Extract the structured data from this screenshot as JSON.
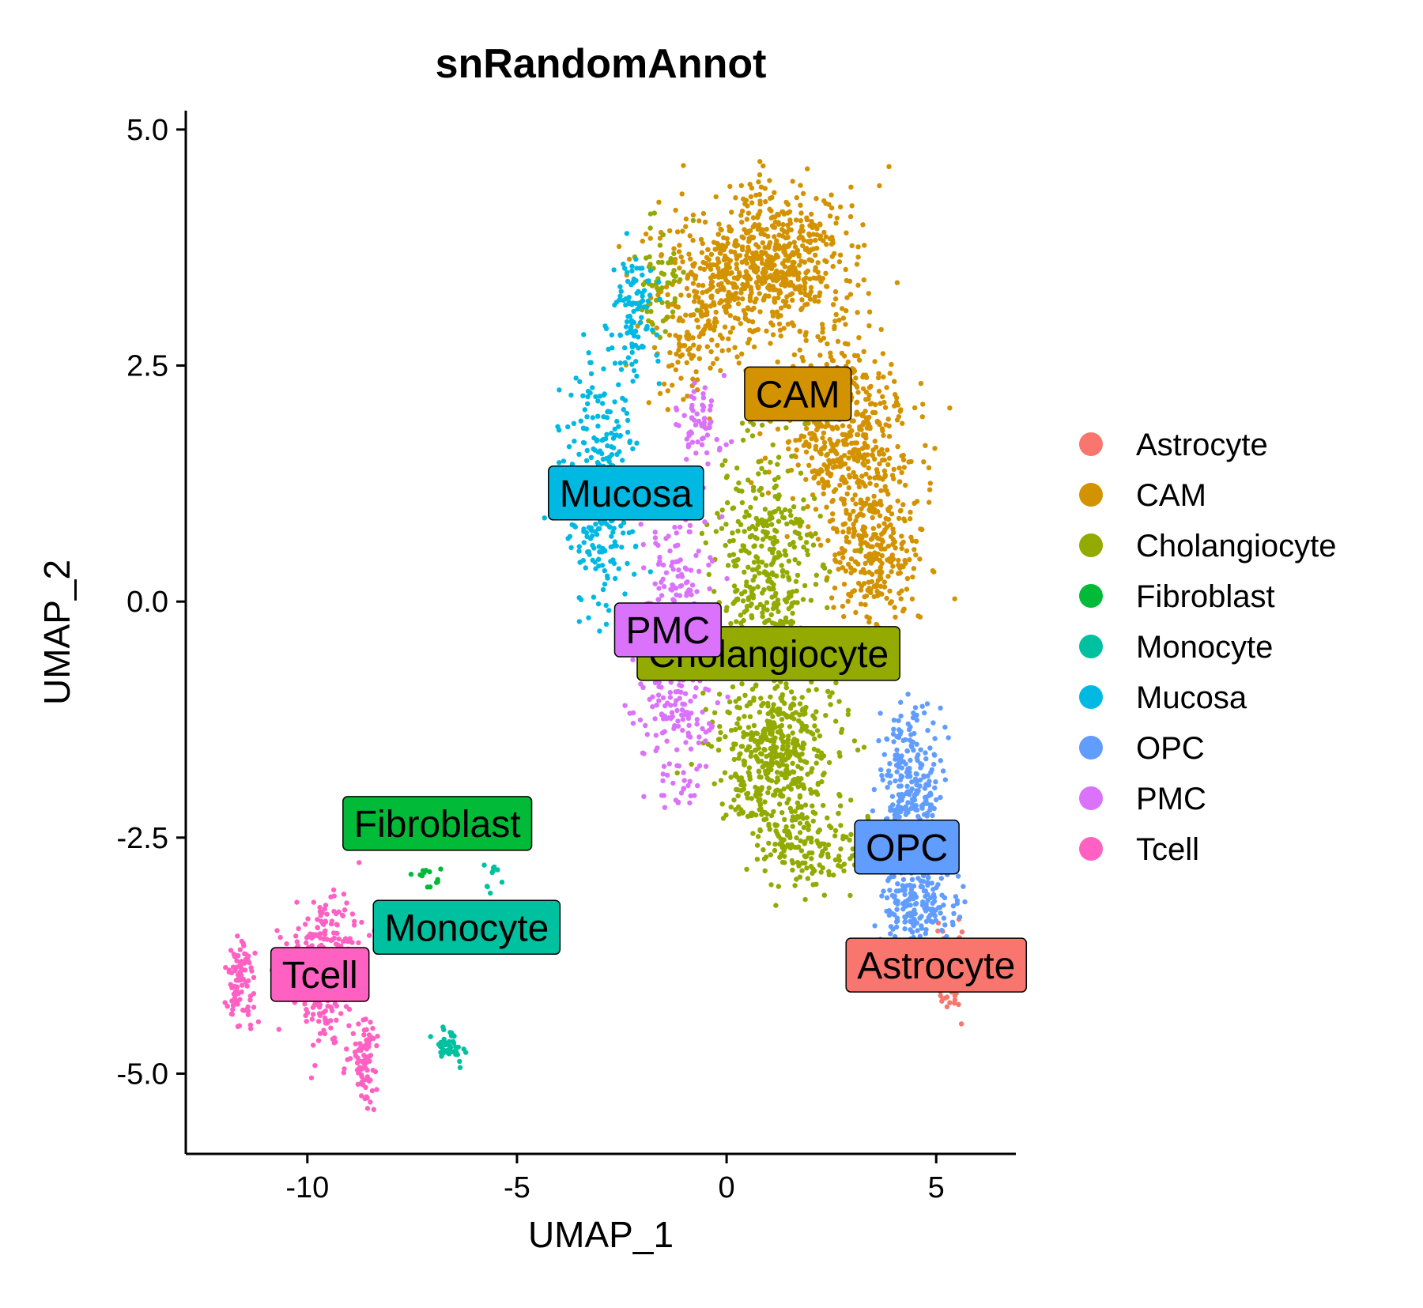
{
  "chart_data": {
    "type": "scatter",
    "title": "snRandomAnnot",
    "xlabel": "UMAP_1",
    "ylabel": "UMAP_2",
    "xlim": [
      -12.9,
      6.9
    ],
    "ylim": [
      -5.85,
      5.2
    ],
    "xticks": [
      -10,
      -5,
      0,
      5
    ],
    "xtick_labels": [
      "-10",
      "-5",
      "0",
      "5"
    ],
    "yticks": [
      5.0,
      2.5,
      0.0,
      -2.5,
      -5.0
    ],
    "ytick_labels": [
      "5.0",
      "2.5",
      "0.0",
      "-2.5",
      "-5.0"
    ],
    "grid": false,
    "legend_position": "right",
    "series": [
      {
        "name": "Astrocyte",
        "color": "#F8766D",
        "regions": [
          {
            "center": [
              5.3,
              -3.9
            ],
            "spread": [
              0.35,
              0.4
            ],
            "count": 90
          }
        ],
        "label": "Astrocyte",
        "label_pos": [
          5.0,
          -3.85
        ]
      },
      {
        "name": "CAM",
        "color": "#D39200",
        "regions": [
          {
            "center": [
              1.0,
              3.6
            ],
            "spread": [
              1.6,
              0.65
            ],
            "count": 650
          },
          {
            "center": [
              2.8,
              1.8
            ],
            "spread": [
              1.2,
              0.9
            ],
            "count": 500
          },
          {
            "center": [
              3.6,
              0.6
            ],
            "spread": [
              0.9,
              0.8
            ],
            "count": 300
          },
          {
            "center": [
              -0.8,
              3.0
            ],
            "spread": [
              1.0,
              0.7
            ],
            "count": 200
          }
        ],
        "label": "CAM",
        "label_pos": [
          1.7,
          2.2
        ]
      },
      {
        "name": "Cholangiocyte",
        "color": "#93AA00",
        "regions": [
          {
            "center": [
              0.9,
              0.3
            ],
            "spread": [
              1.0,
              1.1
            ],
            "count": 400
          },
          {
            "center": [
              1.2,
              -1.6
            ],
            "spread": [
              1.2,
              0.7
            ],
            "count": 500
          },
          {
            "center": [
              2.0,
              -2.6
            ],
            "spread": [
              1.1,
              0.35
            ],
            "count": 150
          },
          {
            "center": [
              -1.5,
              3.4
            ],
            "spread": [
              0.5,
              0.5
            ],
            "count": 60
          }
        ],
        "label": "Cholangiocyte",
        "label_pos": [
          1.0,
          -0.55
        ]
      },
      {
        "name": "Fibroblast",
        "color": "#00BA38",
        "regions": [
          {
            "center": [
              -7.2,
              -2.9
            ],
            "spread": [
              0.3,
              0.25
            ],
            "count": 14
          }
        ],
        "label": "Fibroblast",
        "label_pos": [
          -6.9,
          -2.35
        ]
      },
      {
        "name": "Monocyte",
        "color": "#00C19F",
        "regions": [
          {
            "center": [
              -6.6,
              -4.7
            ],
            "spread": [
              0.3,
              0.12
            ],
            "count": 45
          },
          {
            "center": [
              -5.6,
              -2.9
            ],
            "spread": [
              0.25,
              0.2
            ],
            "count": 10
          }
        ],
        "label": "Monocyte",
        "label_pos": [
          -6.2,
          -3.45
        ]
      },
      {
        "name": "Mucosa",
        "color": "#00B9E3",
        "regions": [
          {
            "center": [
              -3.0,
              1.2
            ],
            "spread": [
              0.7,
              1.1
            ],
            "count": 300
          },
          {
            "center": [
              -2.2,
              3.0
            ],
            "spread": [
              0.4,
              0.6
            ],
            "count": 100
          }
        ],
        "label": "Mucosa",
        "label_pos": [
          -2.4,
          1.15
        ]
      },
      {
        "name": "OPC",
        "color": "#619CFF",
        "regions": [
          {
            "center": [
              4.4,
              -2.0
            ],
            "spread": [
              0.6,
              0.7
            ],
            "count": 250
          },
          {
            "center": [
              4.5,
              -3.2
            ],
            "spread": [
              0.7,
              0.35
            ],
            "count": 200
          }
        ],
        "label": "OPC",
        "label_pos": [
          4.3,
          -2.6
        ]
      },
      {
        "name": "PMC",
        "color": "#DB72FB",
        "regions": [
          {
            "center": [
              -1.2,
              -0.5
            ],
            "spread": [
              0.8,
              1.3
            ],
            "count": 350
          },
          {
            "center": [
              -0.6,
              1.9
            ],
            "spread": [
              0.5,
              0.4
            ],
            "count": 60
          }
        ],
        "label": "PMC",
        "label_pos": [
          -1.4,
          -0.3
        ]
      },
      {
        "name": "Tcell",
        "color": "#FF61C3",
        "regions": [
          {
            "center": [
              -11.6,
              -4.0
            ],
            "spread": [
              0.25,
              0.35
            ],
            "count": 90
          },
          {
            "center": [
              -9.5,
              -3.9
            ],
            "spread": [
              0.75,
              0.6
            ],
            "count": 300
          },
          {
            "center": [
              -8.6,
              -4.9
            ],
            "spread": [
              0.25,
              0.35
            ],
            "count": 80
          }
        ],
        "label": "Tcell",
        "label_pos": [
          -9.7,
          -3.95
        ]
      }
    ]
  }
}
